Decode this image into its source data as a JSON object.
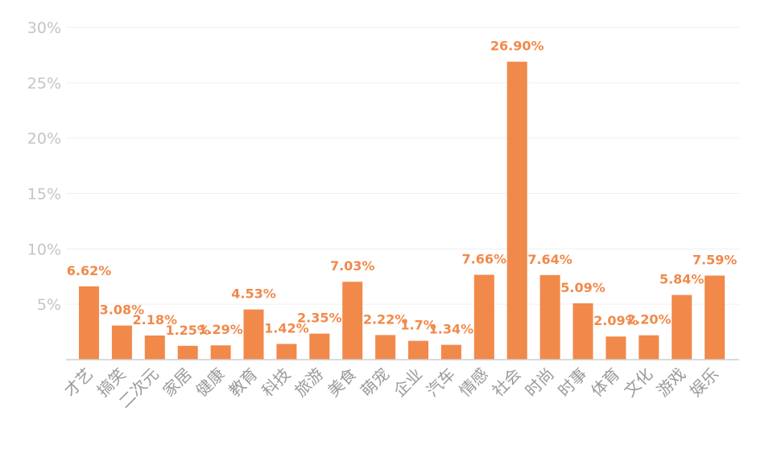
{
  "chart_data": {
    "type": "bar",
    "categories": [
      "才艺",
      "搞笑",
      "二次元",
      "家居",
      "健康",
      "教育",
      "科技",
      "旅游",
      "美食",
      "萌宠",
      "企业",
      "汽车",
      "情感",
      "社会",
      "时尚",
      "时事",
      "体育",
      "文化",
      "游戏",
      "娱乐"
    ],
    "values": [
      6.62,
      3.08,
      2.18,
      1.25,
      1.29,
      4.53,
      1.42,
      2.35,
      7.03,
      2.22,
      1.7,
      1.34,
      7.66,
      26.9,
      7.64,
      5.09,
      2.09,
      2.2,
      5.84,
      7.59
    ],
    "data_labels": [
      "6.62%",
      "3.08%",
      "2.18%",
      "1.25%",
      "1.29%",
      "4.53%",
      "1.42%",
      "2.35%",
      "7.03%",
      "2.22%",
      "1.7%",
      "1.34%",
      "7.66%",
      "26.90%",
      "7.64%",
      "5.09%",
      "2.09%",
      "2.20%",
      "5.84%",
      "7.59%"
    ],
    "y_ticks": [
      5,
      10,
      15,
      20,
      25,
      30
    ],
    "y_tick_labels": [
      "5%",
      "10%",
      "15%",
      "20%",
      "25%",
      "30%"
    ],
    "ylim": [
      0,
      30
    ],
    "grid": true,
    "legend": "none",
    "colors": {
      "bar": "#f1894a",
      "tick_text": "#c4c4c4",
      "category_text": "#9a9a9a",
      "grid": "#efefef"
    }
  }
}
